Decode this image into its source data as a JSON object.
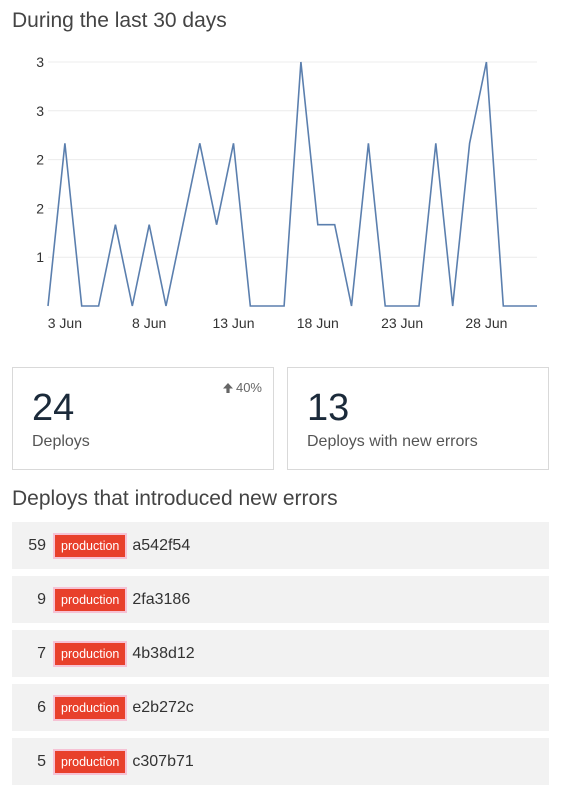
{
  "chart_section": {
    "title": "During the last 30 days"
  },
  "chart_data": {
    "type": "line",
    "x": [
      "2 Jun",
      "3 Jun",
      "4 Jun",
      "5 Jun",
      "6 Jun",
      "7 Jun",
      "8 Jun",
      "9 Jun",
      "10 Jun",
      "11 Jun",
      "12 Jun",
      "13 Jun",
      "14 Jun",
      "15 Jun",
      "16 Jun",
      "17 Jun",
      "18 Jun",
      "19 Jun",
      "20 Jun",
      "21 Jun",
      "22 Jun",
      "23 Jun",
      "24 Jun",
      "25 Jun",
      "26 Jun",
      "27 Jun",
      "28 Jun",
      "29 Jun",
      "30 Jun",
      "1 Jul"
    ],
    "series": [
      {
        "values": [
          0,
          2,
          0,
          0,
          1,
          0,
          1,
          0,
          1,
          2,
          1,
          2,
          0,
          0,
          0,
          3,
          1,
          1,
          0,
          2,
          0,
          0,
          0,
          2,
          0,
          2,
          3,
          0,
          0,
          0
        ]
      }
    ],
    "xtick_labels": [
      "3 Jun",
      "8 Jun",
      "13 Jun",
      "18 Jun",
      "23 Jun",
      "28 Jun"
    ],
    "ytick_labels": [
      "1",
      "2",
      "2",
      "3",
      "3"
    ],
    "ylim": [
      0,
      3
    ],
    "grid": "horizontal",
    "line_color": "#5b7fae"
  },
  "stats": {
    "deploys": {
      "value": "24",
      "label": "Deploys",
      "change": "40%",
      "change_icon": "arrow-up-icon"
    },
    "errors": {
      "value": "13",
      "label": "Deploys with new errors"
    }
  },
  "deploys_section": {
    "title": "Deploys that introduced new errors",
    "badge_color": "#e8402b",
    "rows": [
      {
        "count": "59",
        "environment": "production",
        "hash": "a542f54"
      },
      {
        "count": "9",
        "environment": "production",
        "hash": "2fa3186"
      },
      {
        "count": "7",
        "environment": "production",
        "hash": "4b38d12"
      },
      {
        "count": "6",
        "environment": "production",
        "hash": "e2b272c"
      },
      {
        "count": "5",
        "environment": "production",
        "hash": "c307b71"
      }
    ]
  }
}
